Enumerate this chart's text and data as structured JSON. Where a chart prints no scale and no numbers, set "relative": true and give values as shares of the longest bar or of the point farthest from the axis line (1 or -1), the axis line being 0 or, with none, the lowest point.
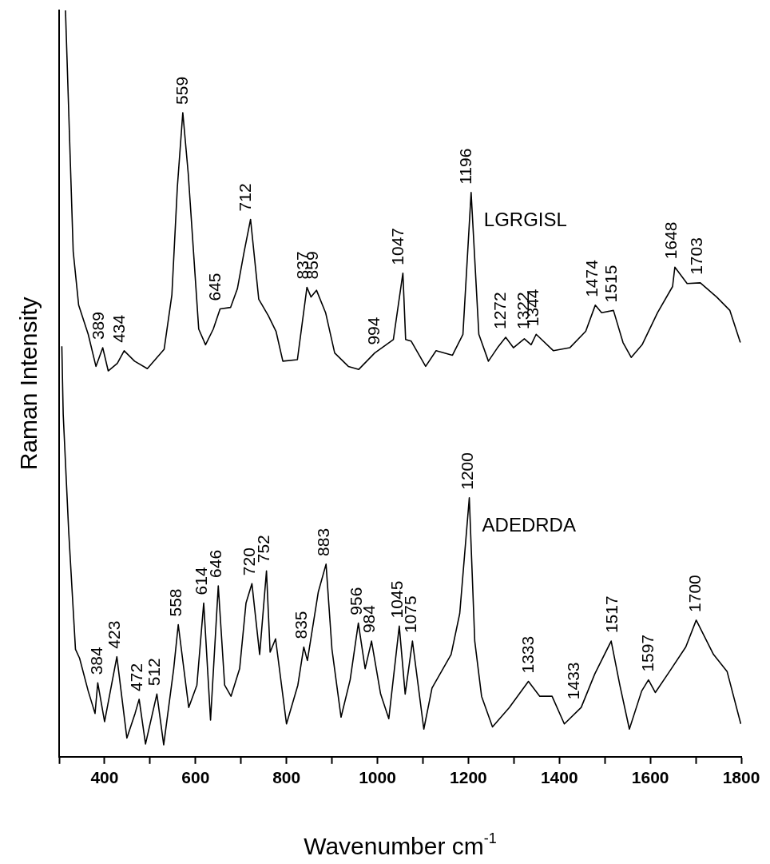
{
  "chart_data": {
    "type": "line",
    "relative": true,
    "xlabel": "Wavenumber cm$^{-1}$",
    "ylabel": "Raman Intensity",
    "xlim": [
      300,
      1800
    ],
    "xticks": [
      {
        "value": 300,
        "label": null
      },
      400,
      {
        "value": 500,
        "label": null
      },
      600,
      {
        "value": 700,
        "label": null
      },
      800,
      {
        "value": 900,
        "label": null
      },
      1000,
      {
        "value": 1100,
        "label": null
      },
      1200,
      {
        "value": 1300,
        "label": null
      },
      1400,
      {
        "value": 1500,
        "label": null
      },
      1600,
      {
        "value": 1700,
        "label": null
      },
      1800
    ],
    "grid": false,
    "legend": false,
    "series": [
      {
        "name": "LGRGISL",
        "color": "#000000",
        "x": [
          314,
          331,
          343,
          364,
          381,
          396,
          408,
          428,
          443,
          466,
          494,
          531,
          548,
          560,
          572,
          584,
          607,
          622,
          639,
          654,
          677,
          692,
          707,
          721,
          739,
          760,
          777,
          792,
          824,
          845,
          854,
          866,
          886,
          906,
          936,
          959,
          994,
          1035,
          1056,
          1062,
          1074,
          1106,
          1129,
          1165,
          1188,
          1206,
          1223,
          1244,
          1264,
          1282,
          1299,
          1323,
          1338,
          1349,
          1387,
          1423,
          1458,
          1479,
          1493,
          1519,
          1540,
          1558,
          1582,
          1616,
          1649,
          1654,
          1681,
          1710,
          1746,
          1775,
          1798
        ],
        "values": [
          1.0,
          0.677,
          0.605,
          0.566,
          0.523,
          0.548,
          0.517,
          0.527,
          0.544,
          0.53,
          0.52,
          0.546,
          0.619,
          0.763,
          0.863,
          0.781,
          0.573,
          0.552,
          0.573,
          0.6,
          0.602,
          0.627,
          0.677,
          0.72,
          0.613,
          0.591,
          0.57,
          0.53,
          0.532,
          0.629,
          0.616,
          0.625,
          0.595,
          0.541,
          0.523,
          0.519,
          0.541,
          0.559,
          0.648,
          0.559,
          0.557,
          0.523,
          0.544,
          0.538,
          0.566,
          0.756,
          0.566,
          0.53,
          0.548,
          0.562,
          0.548,
          0.56,
          0.552,
          0.566,
          0.544,
          0.548,
          0.57,
          0.605,
          0.595,
          0.598,
          0.555,
          0.535,
          0.552,
          0.595,
          0.63,
          0.656,
          0.634,
          0.635,
          0.616,
          0.598,
          0.555
        ]
      },
      {
        "name": "ADEDRDA",
        "color": "#000000",
        "x": [
          306,
          309,
          321,
          336,
          345,
          364,
          379,
          385,
          400,
          427,
          449,
          467,
          476,
          490,
          515,
          530,
          552,
          562,
          585,
          603,
          618,
          633,
          650,
          664,
          678,
          697,
          711,
          724,
          741,
          756,
          764,
          776,
          800,
          825,
          838,
          846,
          870,
          887,
          900,
          920,
          940,
          958,
          973,
          987,
          1007,
          1025,
          1048,
          1061,
          1077,
          1102,
          1120,
          1162,
          1181,
          1202,
          1214,
          1229,
          1253,
          1290,
          1332,
          1357,
          1384,
          1411,
          1448,
          1478,
          1514,
          1533,
          1554,
          1581,
          1596,
          1611,
          1642,
          1678,
          1701,
          1739,
          1769,
          1799
        ],
        "values": [
          0.55,
          0.459,
          0.303,
          0.144,
          0.132,
          0.088,
          0.058,
          0.099,
          0.047,
          0.134,
          0.025,
          0.058,
          0.077,
          0.017,
          0.084,
          0.016,
          0.118,
          0.177,
          0.066,
          0.096,
          0.206,
          0.049,
          0.229,
          0.096,
          0.081,
          0.118,
          0.206,
          0.232,
          0.137,
          0.249,
          0.14,
          0.158,
          0.044,
          0.096,
          0.147,
          0.129,
          0.221,
          0.258,
          0.144,
          0.053,
          0.103,
          0.179,
          0.118,
          0.155,
          0.084,
          0.051,
          0.175,
          0.084,
          0.155,
          0.037,
          0.092,
          0.137,
          0.192,
          0.347,
          0.155,
          0.081,
          0.04,
          0.066,
          0.101,
          0.081,
          0.081,
          0.044,
          0.066,
          0.111,
          0.155,
          0.096,
          0.037,
          0.088,
          0.103,
          0.086,
          0.114,
          0.147,
          0.183,
          0.137,
          0.114,
          0.044
        ]
      }
    ],
    "annotations": [
      {
        "text": "389",
        "x": 389,
        "y": 0.536
      },
      {
        "text": "434",
        "x": 434,
        "y": 0.534
      },
      {
        "text": "559",
        "x": 572,
        "y": 0.863
      },
      {
        "text": "645",
        "x": 645,
        "y": 0.6
      },
      {
        "text": "712",
        "x": 712,
        "y": 0.72
      },
      {
        "text": "837",
        "x": 837,
        "y": 0.629
      },
      {
        "text": "859",
        "x": 859,
        "y": 0.625
      },
      {
        "text": "994",
        "x": 994,
        "y": 0.541
      },
      {
        "text": "1047",
        "x": 1047,
        "y": 0.648
      },
      {
        "text": "1196",
        "x": 1196,
        "y": 0.756
      },
      {
        "text": "1272",
        "x": 1272,
        "y": 0.562
      },
      {
        "text": "1322",
        "x": 1322,
        "y": 0.562
      },
      {
        "text": "1344",
        "x": 1344,
        "y": 0.566
      },
      {
        "text": "1474",
        "x": 1474,
        "y": 0.605
      },
      {
        "text": "1515",
        "x": 1515,
        "y": 0.598
      },
      {
        "text": "1648",
        "x": 1648,
        "y": 0.656
      },
      {
        "text": "1703",
        "x": 1703,
        "y": 0.635
      },
      {
        "text": "384",
        "x": 384,
        "y": 0.099
      },
      {
        "text": "423",
        "x": 423,
        "y": 0.134
      },
      {
        "text": "472",
        "x": 472,
        "y": 0.077
      },
      {
        "text": "512",
        "x": 512,
        "y": 0.084
      },
      {
        "text": "558",
        "x": 558,
        "y": 0.177
      },
      {
        "text": "614",
        "x": 614,
        "y": 0.206
      },
      {
        "text": "646",
        "x": 646,
        "y": 0.229
      },
      {
        "text": "720",
        "x": 720,
        "y": 0.232
      },
      {
        "text": "752",
        "x": 752,
        "y": 0.249
      },
      {
        "text": "835",
        "x": 835,
        "y": 0.147
      },
      {
        "text": "883",
        "x": 883,
        "y": 0.258
      },
      {
        "text": "956",
        "x": 956,
        "y": 0.179
      },
      {
        "text": "984",
        "x": 984,
        "y": 0.155
      },
      {
        "text": "1045",
        "x": 1045,
        "y": 0.175
      },
      {
        "text": "1075",
        "x": 1075,
        "y": 0.155
      },
      {
        "text": "1200",
        "x": 1200,
        "y": 0.347
      },
      {
        "text": "1333",
        "x": 1333,
        "y": 0.101
      },
      {
        "text": "1433",
        "x": 1433,
        "y": 0.056
      },
      {
        "text": "1517",
        "x": 1517,
        "y": 0.155
      },
      {
        "text": "1597",
        "x": 1597,
        "y": 0.103
      },
      {
        "text": "1700",
        "x": 1700,
        "y": 0.183
      }
    ]
  }
}
